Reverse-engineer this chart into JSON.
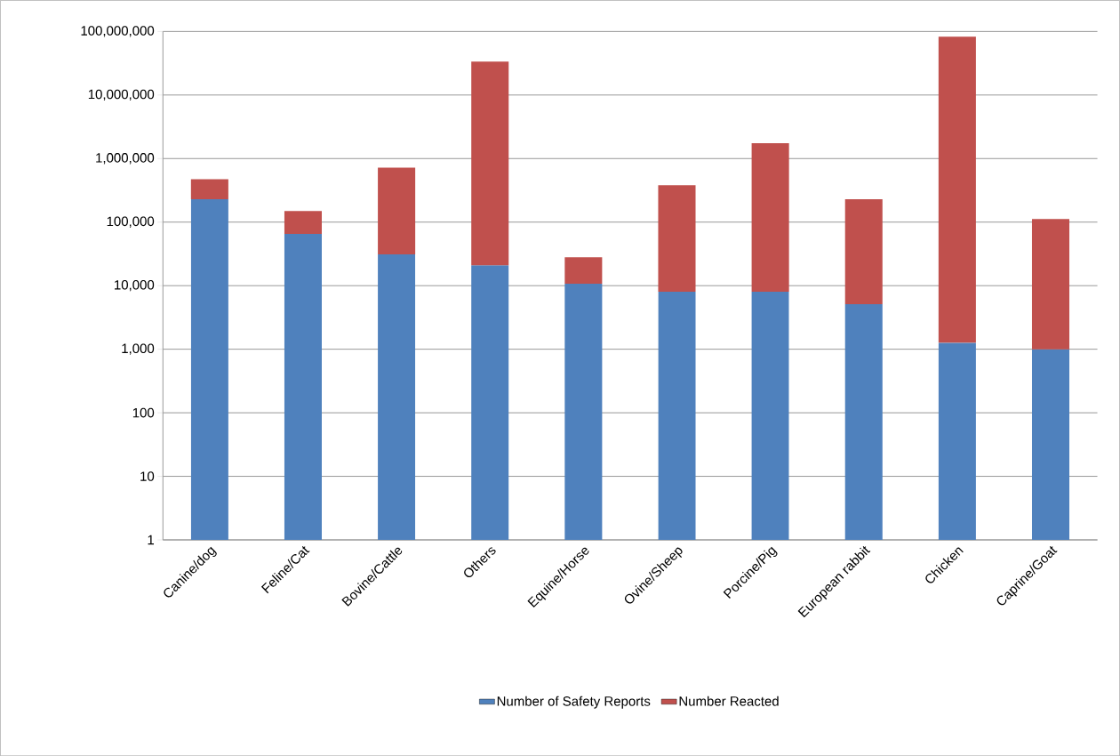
{
  "chart_data": {
    "type": "bar",
    "stacked": true,
    "log": "y",
    "grid": "y",
    "legend": "bottom",
    "categories": [
      "Canine/dog",
      "Feline/Cat",
      "Bovine/Cattle",
      "Others",
      "Equine/Horse",
      "Ovine/Sheep",
      "Porcine/Pig",
      "European rabbit",
      "Chicken",
      "Caprine/Goat"
    ],
    "series": [
      {
        "name": "Number of Safety Reports",
        "color": "#4f81bd",
        "values": [
          230000,
          65000,
          31000,
          21000,
          10700,
          8000,
          8000,
          5100,
          1270,
          1000
        ]
      },
      {
        "name": "Number Reacted",
        "color": "#c0504d",
        "values": [
          245000,
          84000,
          690000,
          33500000,
          17300,
          372000,
          1732000,
          224000,
          83000000,
          111000
        ]
      }
    ],
    "ylim": [
      1,
      100000000
    ],
    "yticks": [
      1,
      10,
      100,
      {
        "value": 1000,
        "label": "1,000"
      },
      {
        "value": 10000,
        "label": "10,000"
      },
      {
        "value": 100000,
        "label": "100,000"
      },
      {
        "value": 1000000,
        "label": "1,000,000"
      },
      {
        "value": 10000000,
        "label": "10,000,000"
      },
      {
        "value": 100000000,
        "label": "100,000,000"
      }
    ]
  }
}
